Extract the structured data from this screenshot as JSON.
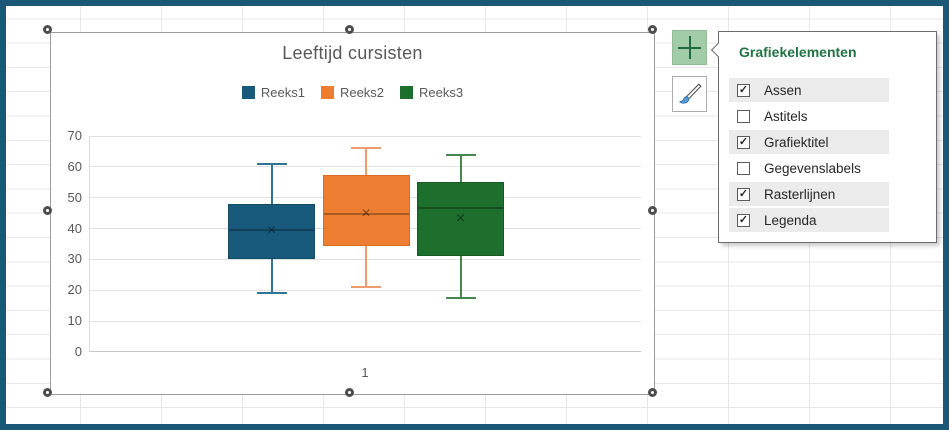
{
  "chart_data": {
    "type": "box",
    "title": "Leeftijd cursisten",
    "categories": [
      "1"
    ],
    "xlabel": "",
    "ylabel": "",
    "ylim": [
      0,
      70
    ],
    "y_ticks": [
      0,
      10,
      20,
      30,
      40,
      50,
      60,
      70
    ],
    "grid": true,
    "legend_position": "top",
    "series": [
      {
        "name": "Reeks1",
        "color": "#175A7B",
        "border_color": "#124B66",
        "whisker_color": "#2F7494",
        "min": 19,
        "q1": 30,
        "median": 40,
        "mean": 39.5,
        "q3": 48,
        "max": 61
      },
      {
        "name": "Reeks2",
        "color": "#ED7D31",
        "border_color": "#DA6B1F",
        "whisker_color": "#EC9C6E",
        "min": 21,
        "q1": 34.5,
        "median": 45,
        "mean": 45,
        "q3": 57.5,
        "max": 66
      },
      {
        "name": "Reeks3",
        "color": "#1E6E2E",
        "border_color": "#175A24",
        "whisker_color": "#45874F",
        "min": 17.5,
        "q1": 31,
        "median": 47,
        "mean": 43.5,
        "q3": 55,
        "max": 64
      }
    ]
  },
  "chart_tools": {
    "plus_button": "chart-elements",
    "brush_button": "chart-styles"
  },
  "elements_panel": {
    "title": "Grafiekelementen",
    "items": [
      {
        "label": "Assen",
        "checked": true
      },
      {
        "label": "Astitels",
        "checked": false
      },
      {
        "label": "Grafiektitel",
        "checked": true
      },
      {
        "label": "Gegevenslabels",
        "checked": false
      },
      {
        "label": "Rasterlijnen",
        "checked": true
      },
      {
        "label": "Legenda",
        "checked": true
      }
    ]
  },
  "colors": {
    "frame": "#1B5878",
    "panel_title_green": "#217346",
    "plus_button_bg": "#A2CCA8",
    "plus_glyph": "#1E6B41",
    "text_gray": "#595959",
    "row_highlight": "#EBEBEB"
  },
  "check_glyph": "✓"
}
